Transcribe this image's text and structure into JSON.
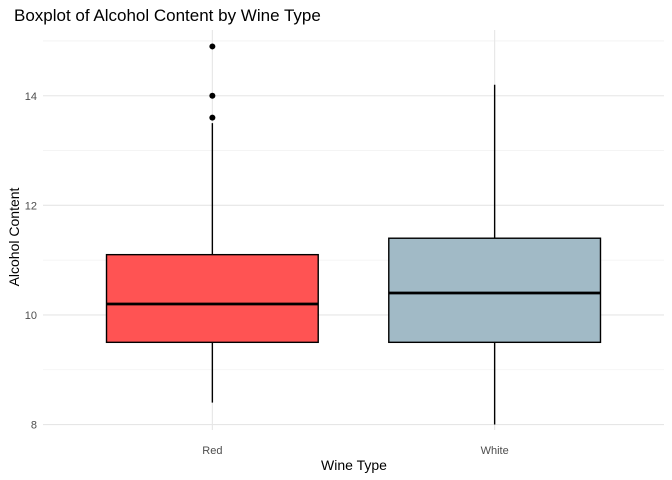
{
  "chart_data": {
    "type": "boxplot",
    "title": "Boxplot of Alcohol Content by Wine Type",
    "xlabel": "Wine Type",
    "ylabel": "Alcohol Content",
    "ylim": [
      7.9,
      15.2
    ],
    "yticks": [
      8,
      10,
      12,
      14
    ],
    "grid": true,
    "legend": "none",
    "categories": [
      "Red",
      "White"
    ],
    "boxes": [
      {
        "category": "Red",
        "color": "#ff5353",
        "whisker_low": 8.4,
        "q1": 9.5,
        "median": 10.2,
        "q3": 11.1,
        "whisker_high": 13.5,
        "outliers": [
          13.6,
          14.0,
          14.9
        ]
      },
      {
        "category": "White",
        "color": "#a1bac6",
        "whisker_low": 8.0,
        "q1": 9.5,
        "median": 10.4,
        "q3": 11.4,
        "whisker_high": 14.2,
        "outliers": []
      }
    ]
  }
}
